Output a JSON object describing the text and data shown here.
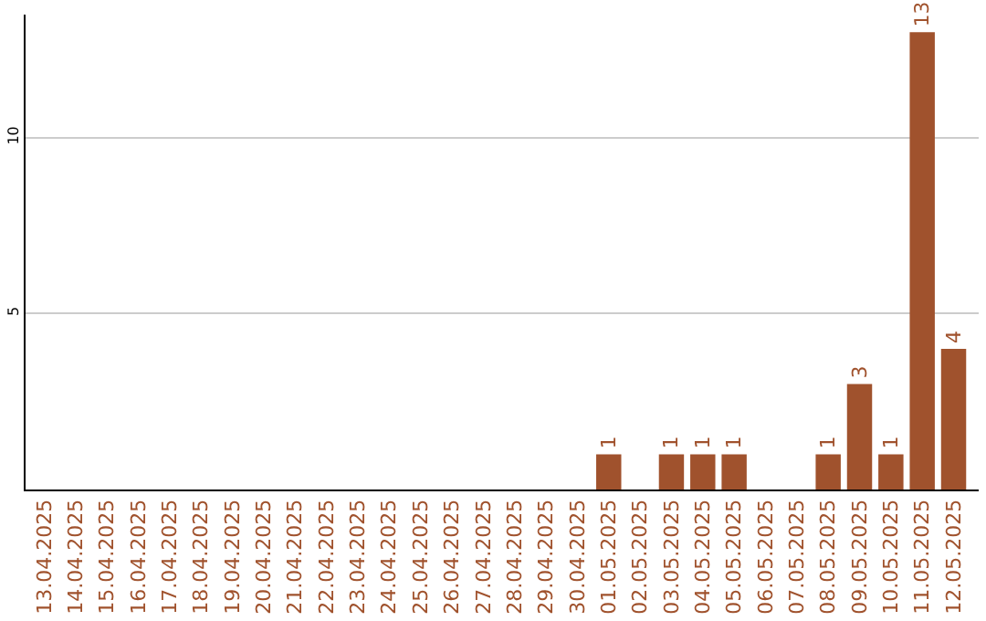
{
  "chart_data": {
    "type": "bar",
    "categories": [
      "13.04.2025",
      "14.04.2025",
      "15.04.2025",
      "16.04.2025",
      "17.04.2025",
      "18.04.2025",
      "19.04.2025",
      "20.04.2025",
      "21.04.2025",
      "22.04.2025",
      "23.04.2025",
      "24.04.2025",
      "25.04.2025",
      "26.04.2025",
      "27.04.2025",
      "28.04.2025",
      "29.04.2025",
      "30.04.2025",
      "01.05.2025",
      "02.05.2025",
      "03.05.2025",
      "04.05.2025",
      "05.05.2025",
      "06.05.2025",
      "07.05.2025",
      "08.05.2025",
      "09.05.2025",
      "10.05.2025",
      "11.05.2025",
      "12.05.2025"
    ],
    "values": [
      0,
      0,
      0,
      0,
      0,
      0,
      0,
      0,
      0,
      0,
      0,
      0,
      0,
      0,
      0,
      0,
      0,
      0,
      1,
      0,
      1,
      1,
      1,
      0,
      0,
      1,
      3,
      1,
      13,
      4
    ],
    "value_labels": [
      null,
      null,
      null,
      null,
      null,
      null,
      null,
      null,
      null,
      null,
      null,
      null,
      null,
      null,
      null,
      null,
      null,
      null,
      "1",
      null,
      "1",
      "1",
      "1",
      null,
      null,
      "1",
      "3",
      "1",
      "13",
      "4"
    ],
    "color": "#a0522d",
    "ylim": [
      0,
      13.5
    ],
    "yticks": [
      5,
      10
    ],
    "grid": "y",
    "legend": false
  }
}
